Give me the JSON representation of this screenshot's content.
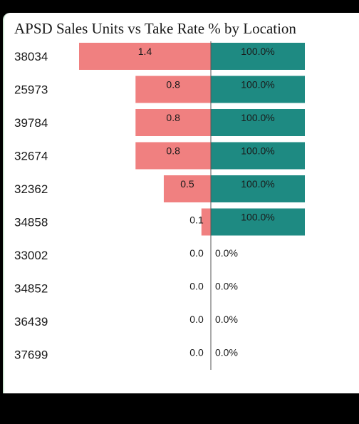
{
  "chart_data": {
    "type": "bar",
    "title": "APSD Sales Units vs Take Rate % by Location",
    "categories": [
      "38034",
      "25973",
      "39784",
      "32674",
      "32362",
      "34858",
      "33002",
      "34852",
      "36439",
      "37699"
    ],
    "series": [
      {
        "values": [
          1.4,
          0.8,
          0.8,
          0.8,
          0.5,
          0.1,
          0.0,
          0.0,
          0.0,
          0.0
        ],
        "labels": [
          "1.4",
          "0.8",
          "0.8",
          "0.8",
          "0.5",
          "0.1",
          "0.0",
          "0.0",
          "0.0",
          "0.0"
        ],
        "color": "#f08080",
        "direction": "left"
      },
      {
        "values": [
          100.0,
          100.0,
          100.0,
          100.0,
          100.0,
          100.0,
          0.0,
          0.0,
          0.0,
          0.0
        ],
        "labels": [
          "100.0%",
          "100.0%",
          "100.0%",
          "100.0%",
          "100.0%",
          "100.0%",
          "0.0%",
          "0.0%",
          "0.0%",
          "0.0%"
        ],
        "color": "#1e8a82",
        "direction": "right"
      }
    ],
    "left_max": 1.4,
    "right_max": 100.0,
    "axis_color": "#555555"
  }
}
